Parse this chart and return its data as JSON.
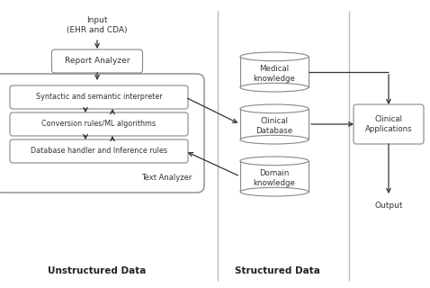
{
  "bg_color": "#ffffff",
  "text_color": "#333333",
  "box_ec": "#888888",
  "div_color": "#aaaaaa",
  "title_unstructured": "Unstructured Data",
  "title_structured": "Structured Data",
  "input_label": "Input\n(EHR and CDA)",
  "report_analyzer_label": "Report Analyzer",
  "syntactic_label": "Syntactic and semantic interpreter",
  "conversion_label": "Conversion rules/ML algorithms",
  "database_label": "Database handler and Inference rules",
  "text_analyzer_label": "Text Analyzer",
  "medical_label": "Medical\nknowledge",
  "clinical_db_label": "Clinical\nDatabase",
  "domain_label": "Domain\nknowledge",
  "clinical_app_label": "Clinical\nApplications",
  "output_label": "Output",
  "figw": 4.78,
  "figh": 3.2,
  "dpi": 100
}
